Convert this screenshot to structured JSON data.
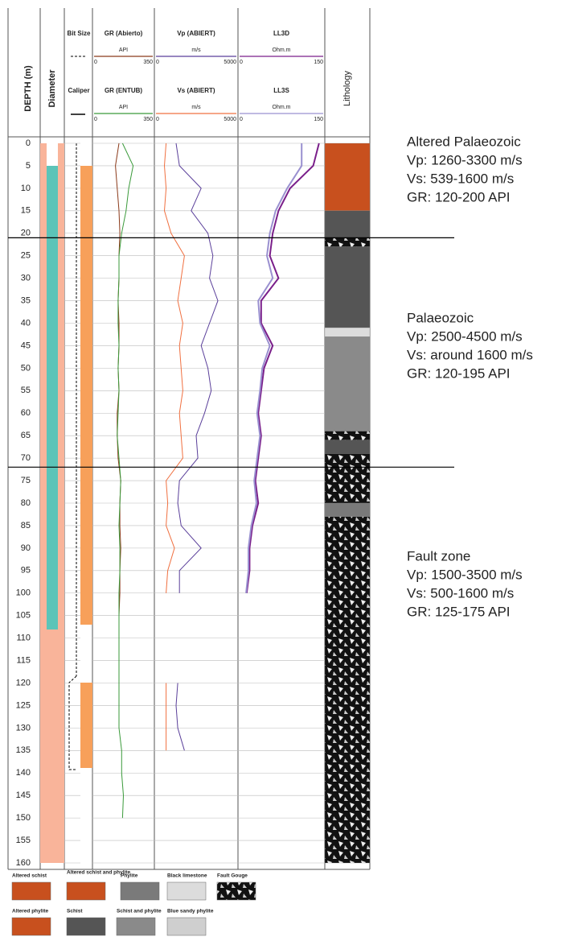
{
  "header": {
    "depth_label": "DEPTH (m)",
    "diameter_label": "Diameter",
    "lithology_label": "Lithology",
    "bit_size_label": "Bit Size",
    "caliper_label": "Caliper"
  },
  "log": {
    "depth_ticks": [
      0,
      5,
      10,
      15,
      20,
      25,
      30,
      35,
      40,
      45,
      50,
      55,
      60,
      65,
      70,
      75,
      80,
      85,
      90,
      95,
      100,
      105,
      110,
      115,
      120,
      125,
      130,
      135,
      140,
      145,
      150,
      155,
      160
    ],
    "depth_range": [
      0,
      160
    ],
    "depths": [
      0,
      5,
      10,
      15,
      20,
      25,
      30,
      35,
      40,
      45,
      50,
      55,
      60,
      65,
      70,
      75,
      80,
      85,
      90,
      95,
      100,
      105,
      110,
      115,
      120,
      125,
      130,
      135,
      140,
      145,
      150,
      155
    ],
    "series": [
      {
        "name": "GR  (Abierto)",
        "unit": "API",
        "scale": [
          0,
          350
        ],
        "color": "#8b3a1a",
        "values": [
          150,
          130,
          140,
          150,
          155,
          150,
          150,
          145,
          150,
          150,
          145,
          150,
          140,
          140,
          145,
          160,
          155,
          155,
          160,
          155,
          155,
          150,
          null,
          null,
          null,
          null,
          null,
          null,
          null,
          null,
          null,
          null
        ]
      },
      {
        "name": "GR  (ENTUB)",
        "unit": "API",
        "scale": [
          0,
          350
        ],
        "color": "#3a9a3a",
        "values": [
          170,
          230,
          205,
          190,
          165,
          150,
          150,
          145,
          145,
          150,
          145,
          150,
          145,
          140,
          150,
          160,
          155,
          150,
          155,
          155,
          150,
          150,
          150,
          150,
          150,
          150,
          150,
          165,
          165,
          175,
          170,
          null
        ]
      },
      {
        "name": "Vp    (ABIERT)",
        "unit": "m/s",
        "scale": [
          0,
          5000
        ],
        "color": "#5a3f9a",
        "values": [
          1300,
          1500,
          2800,
          2200,
          3200,
          3500,
          3300,
          3800,
          3300,
          2800,
          3200,
          3400,
          3000,
          2500,
          2600,
          1500,
          1400,
          1600,
          2800,
          1500,
          1500,
          null,
          null,
          null,
          1400,
          1300,
          1400,
          1800,
          null,
          null,
          null,
          null
        ]
      },
      {
        "name": "Vs    (ABIERT)",
        "unit": "m/s",
        "scale": [
          0,
          5000
        ],
        "color": "#f07040",
        "values": [
          700,
          600,
          700,
          600,
          1000,
          1800,
          1600,
          1400,
          1700,
          1500,
          1600,
          1700,
          1500,
          1600,
          1700,
          700,
          800,
          700,
          1200,
          800,
          700,
          null,
          null,
          null,
          700,
          700,
          700,
          700,
          null,
          null,
          null,
          null
        ]
      },
      {
        "name": "LL3D",
        "unit": "Ohm.m",
        "scale": [
          0,
          150
        ],
        "color": "#7a1f8a",
        "values": [
          140,
          130,
          90,
          70,
          60,
          55,
          70,
          40,
          40,
          60,
          45,
          40,
          35,
          40,
          35,
          30,
          35,
          25,
          20,
          20,
          15,
          null,
          null,
          null,
          null,
          null,
          null,
          null,
          null,
          null,
          null,
          null
        ]
      },
      {
        "name": "LL3S",
        "unit": "Ohm.m",
        "scale": [
          0,
          150
        ],
        "color": "#9a90d0",
        "values": [
          110,
          110,
          85,
          65,
          55,
          50,
          60,
          35,
          38,
          55,
          42,
          38,
          33,
          38,
          33,
          28,
          32,
          23,
          18,
          18,
          14,
          null,
          null,
          null,
          null,
          null,
          null,
          null,
          null,
          null,
          null,
          null
        ]
      }
    ],
    "zone_boundaries": [
      21,
      72
    ],
    "lithology": [
      [
        0,
        15,
        0
      ],
      [
        15,
        21,
        6
      ],
      [
        21,
        23,
        4
      ],
      [
        23,
        41,
        6
      ],
      [
        41,
        43,
        3
      ],
      [
        43,
        64,
        7
      ],
      [
        64,
        66,
        4
      ],
      [
        66,
        69,
        6
      ],
      [
        69,
        80,
        4
      ],
      [
        80,
        83,
        2
      ],
      [
        83,
        160,
        4
      ]
    ]
  },
  "zones": [
    {
      "title": "Altered Palaeozoic",
      "lines": [
        "Vp: 1260-3300 m/s",
        "Vs: 539-1600 m/s",
        "GR: 120-200 API"
      ]
    },
    {
      "title": "Palaeozoic",
      "lines": [
        "Vp: 2500-4500 m/s",
        "Vs: around 1600 m/s",
        "GR: 120-195 API"
      ]
    },
    {
      "title": "Fault zone",
      "lines": [
        "Vp: 1500-3500 m/s",
        "Vs: 500-1600 m/s",
        "GR: 125-175 API"
      ]
    }
  ],
  "legend": [
    {
      "name": "Altered schist",
      "color": "#c8501e"
    },
    {
      "name": "Altered schist and phylite",
      "color": "#c8501e"
    },
    {
      "name": "Phylite",
      "color": "#7a7a7a"
    },
    {
      "name": "Black limestone",
      "color": "#dcdcdc"
    },
    {
      "name": "Fault Gouge",
      "color": "#111111"
    },
    {
      "name": "Altered phylite",
      "color": "#c8501e"
    },
    {
      "name": "Schist",
      "color": "#555555"
    },
    {
      "name": "Schist and phylite",
      "color": "#8a8a8a"
    },
    {
      "name": "Blue sandy phylite",
      "color": "#cfcfcf"
    }
  ]
}
